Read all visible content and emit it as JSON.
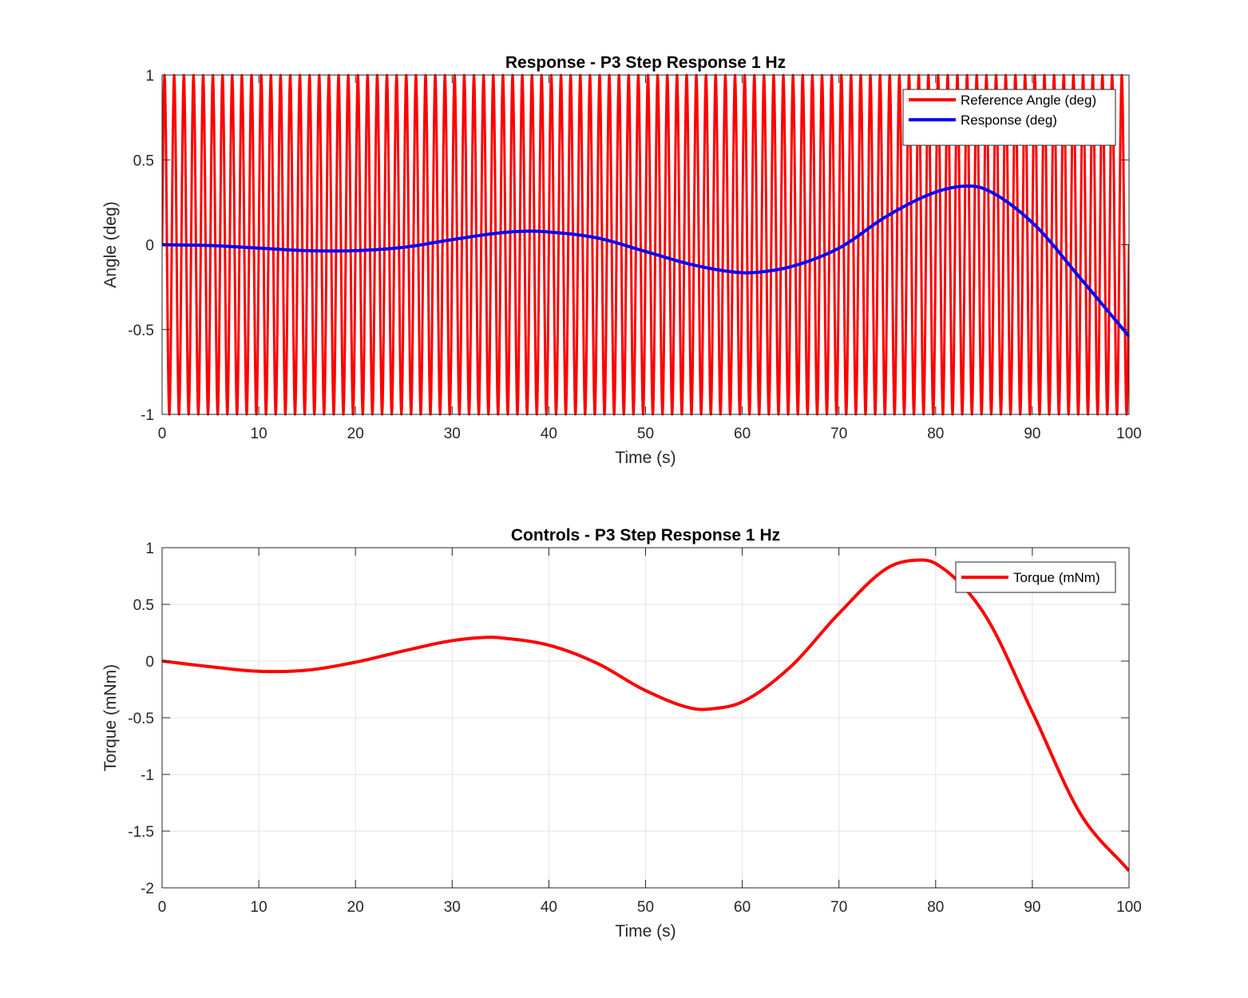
{
  "chart_data": [
    {
      "type": "line",
      "title": "Response - P3 Step Response 1 Hz",
      "xlabel": "Time (s)",
      "ylabel": "Angle (deg)",
      "xlim": [
        0,
        100
      ],
      "ylim": [
        -1,
        1
      ],
      "xticks": [
        0,
        10,
        20,
        30,
        40,
        50,
        60,
        70,
        80,
        90,
        100
      ],
      "yticks": [
        -1,
        -0.5,
        0,
        0.5,
        1
      ],
      "xtick_labels": [
        "0",
        "10",
        "20",
        "30",
        "40",
        "50",
        "60",
        "70",
        "80",
        "90",
        "100"
      ],
      "ytick_labels": [
        "-1",
        "-0.5",
        "0",
        "0.5",
        "1"
      ],
      "grid": false,
      "legend_position": "top-right",
      "series": [
        {
          "name": "Reference Angle (deg)",
          "color": "#ff0000",
          "kind": "sinusoid",
          "amplitude": 1,
          "frequency_hz": 1,
          "x_range": [
            0,
            100
          ]
        },
        {
          "name": "Response (deg)",
          "color": "#0000ff",
          "x": [
            0,
            5,
            10,
            15,
            20,
            25,
            30,
            35,
            38,
            40,
            45,
            50,
            55,
            60,
            62,
            65,
            70,
            75,
            80,
            83,
            85,
            90,
            95,
            100
          ],
          "y": [
            0,
            -0.005,
            -0.02,
            -0.035,
            -0.035,
            -0.015,
            0.03,
            0.07,
            0.08,
            0.075,
            0.04,
            -0.04,
            -0.12,
            -0.165,
            -0.16,
            -0.13,
            -0.02,
            0.17,
            0.31,
            0.345,
            0.33,
            0.13,
            -0.2,
            -0.54
          ]
        }
      ]
    },
    {
      "type": "line",
      "title": "Controls - P3 Step Response 1 Hz",
      "xlabel": "Time (s)",
      "ylabel": "Torque (mNm)",
      "xlim": [
        0,
        100
      ],
      "ylim": [
        -2,
        1
      ],
      "xticks": [
        0,
        10,
        20,
        30,
        40,
        50,
        60,
        70,
        80,
        90,
        100
      ],
      "yticks": [
        -2,
        -1.5,
        -1,
        -0.5,
        0,
        0.5,
        1
      ],
      "xtick_labels": [
        "0",
        "10",
        "20",
        "30",
        "40",
        "50",
        "60",
        "70",
        "80",
        "90",
        "100"
      ],
      "ytick_labels": [
        "-2",
        "-1.5",
        "-1",
        "-0.5",
        "0",
        "0.5",
        "1"
      ],
      "grid": true,
      "legend_position": "top-right",
      "series": [
        {
          "name": "Torque (mNm)",
          "color": "#ff0000",
          "x": [
            0,
            5,
            10,
            15,
            20,
            25,
            30,
            34,
            35,
            40,
            45,
            50,
            55,
            57,
            60,
            65,
            70,
            75,
            78,
            80,
            85,
            90,
            95,
            100
          ],
          "y": [
            0,
            -0.05,
            -0.09,
            -0.08,
            -0.01,
            0.09,
            0.18,
            0.21,
            0.205,
            0.14,
            -0.02,
            -0.26,
            -0.42,
            -0.42,
            -0.36,
            -0.05,
            0.42,
            0.82,
            0.89,
            0.86,
            0.42,
            -0.45,
            -1.35,
            -1.85
          ]
        }
      ]
    }
  ]
}
